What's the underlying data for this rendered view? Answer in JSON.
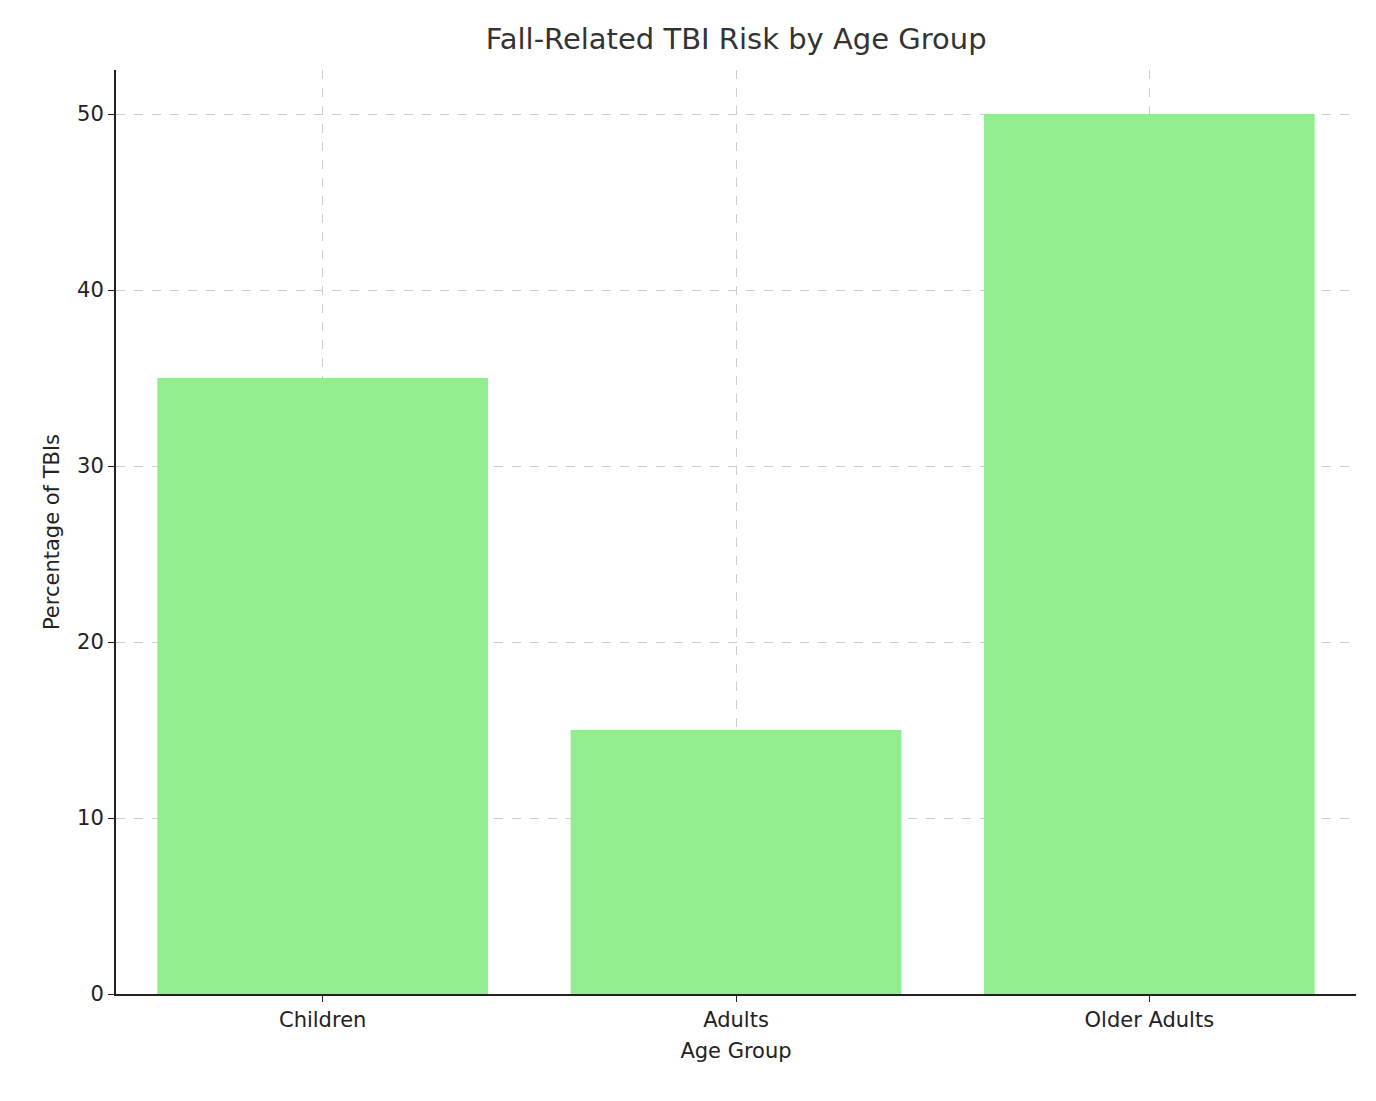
{
  "chart_data": {
    "type": "bar",
    "title": "Fall-Related TBI Risk by Age Group",
    "x_label": "Age Group",
    "y_label": "Percentage of TBIs",
    "categories": [
      "Children",
      "Adults",
      "Older Adults"
    ],
    "values": [
      35,
      15,
      50
    ],
    "color": "#90ee90",
    "ylim": [
      0,
      52.5
    ],
    "yticks": [
      0,
      10,
      20,
      30,
      40,
      50
    ],
    "grid": true
  }
}
